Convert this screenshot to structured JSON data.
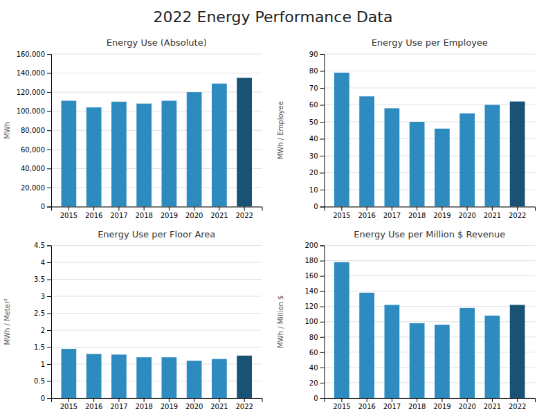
{
  "title": "2022 Energy Performance Data",
  "chart_data": [
    {
      "type": "bar",
      "title": "Energy Use (Absolute)",
      "ylabel": "MWh",
      "categories": [
        "2015",
        "2016",
        "2017",
        "2018",
        "2019",
        "2020",
        "2021",
        "2022"
      ],
      "values": [
        111000,
        104000,
        110000,
        108000,
        111000,
        120000,
        129000,
        135000
      ],
      "colors": [
        "#2E8BC0",
        "#2E8BC0",
        "#2E8BC0",
        "#2E8BC0",
        "#2E8BC0",
        "#2E8BC0",
        "#2E8BC0",
        "#1A5276"
      ],
      "ylim": [
        0,
        160000
      ],
      "yticks": [
        0,
        {
          "value": 20000,
          "label": "20,000"
        },
        {
          "value": 40000,
          "label": "40,000"
        },
        {
          "value": 60000,
          "label": "60,000"
        },
        {
          "value": 80000,
          "label": "80,000"
        },
        {
          "value": 100000,
          "label": "100,000"
        },
        {
          "value": 120000,
          "label": "120,000"
        },
        {
          "value": 140000,
          "label": "140,000"
        },
        {
          "value": 160000,
          "label": "160,000"
        }
      ],
      "grid": true
    },
    {
      "type": "bar",
      "title": "Energy Use per Employee",
      "ylabel": "MWh / Employee",
      "categories": [
        "2015",
        "2016",
        "2017",
        "2018",
        "2019",
        "2020",
        "2021",
        "2022"
      ],
      "values": [
        79,
        65,
        58,
        50,
        46,
        55,
        60,
        62
      ],
      "colors": [
        "#2E8BC0",
        "#2E8BC0",
        "#2E8BC0",
        "#2E8BC0",
        "#2E8BC0",
        "#2E8BC0",
        "#2E8BC0",
        "#1A5276"
      ],
      "ylim": [
        0,
        90
      ],
      "yticks": [
        0,
        10,
        20,
        30,
        40,
        50,
        60,
        70,
        80,
        90
      ],
      "grid": true
    },
    {
      "type": "bar",
      "title": "Energy Use per Floor Area",
      "ylabel": "MWh / Meter²",
      "categories": [
        "2015",
        "2016",
        "2017",
        "2018",
        "2019",
        "2020",
        "2021",
        "2022"
      ],
      "values": [
        1.45,
        1.3,
        1.28,
        1.2,
        1.2,
        1.1,
        1.15,
        1.25
      ],
      "colors": [
        "#2E8BC0",
        "#2E8BC0",
        "#2E8BC0",
        "#2E8BC0",
        "#2E8BC0",
        "#2E8BC0",
        "#2E8BC0",
        "#1A5276"
      ],
      "ylim": [
        0,
        4.5
      ],
      "yticks": [
        0,
        0.5,
        1,
        1.5,
        2,
        2.5,
        3,
        3.5,
        4,
        4.5
      ],
      "grid": true
    },
    {
      "type": "bar",
      "title": "Energy Use per Million $ Revenue",
      "ylabel": "MWh / Million $",
      "categories": [
        "2015",
        "2016",
        "2017",
        "2018",
        "2019",
        "2020",
        "2021",
        "2022"
      ],
      "values": [
        178,
        138,
        122,
        98,
        96,
        118,
        108,
        122
      ],
      "colors": [
        "#2E8BC0",
        "#2E8BC0",
        "#2E8BC0",
        "#2E8BC0",
        "#2E8BC0",
        "#2E8BC0",
        "#2E8BC0",
        "#1A5276"
      ],
      "ylim": [
        0,
        200
      ],
      "yticks": [
        0,
        20,
        40,
        60,
        80,
        100,
        120,
        140,
        160,
        180,
        200
      ],
      "grid": true
    }
  ]
}
